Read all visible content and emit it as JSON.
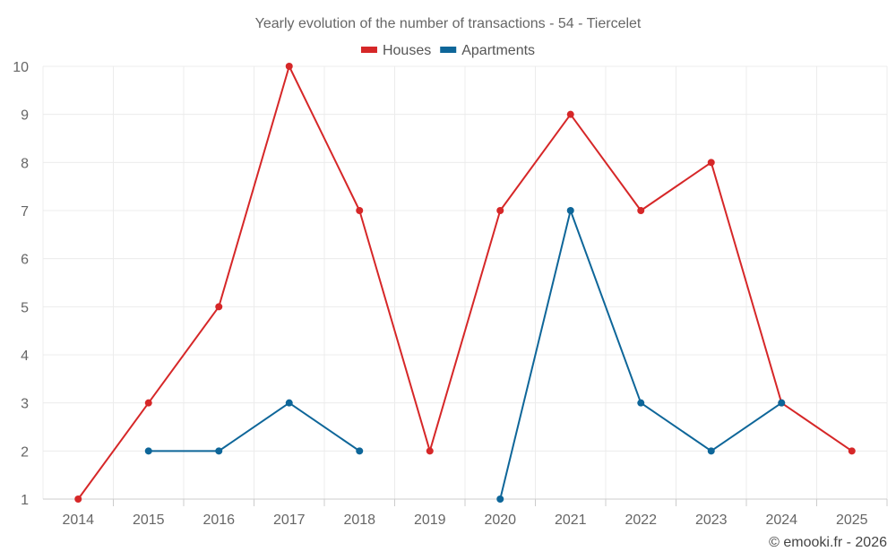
{
  "chart_data": {
    "type": "line",
    "title": "Yearly evolution of the number of transactions - 54 - Tiercelet",
    "x": [
      "2014",
      "2015",
      "2016",
      "2017",
      "2018",
      "2019",
      "2020",
      "2021",
      "2022",
      "2023",
      "2024",
      "2025"
    ],
    "ylim": [
      1,
      10
    ],
    "yticks": [
      1,
      2,
      3,
      4,
      5,
      6,
      7,
      8,
      9,
      10
    ],
    "grid": true,
    "legend_position": "top-center",
    "series": [
      {
        "name": "Houses",
        "color": "#d62728",
        "values": [
          1,
          3,
          5,
          10,
          7,
          2,
          7,
          9,
          7,
          8,
          3,
          2
        ]
      },
      {
        "name": "Apartments",
        "color": "#0e6699",
        "values": [
          null,
          2,
          2,
          3,
          2,
          null,
          1,
          7,
          3,
          2,
          3,
          null
        ]
      }
    ]
  },
  "credit": "© emooki.fr - 2026"
}
